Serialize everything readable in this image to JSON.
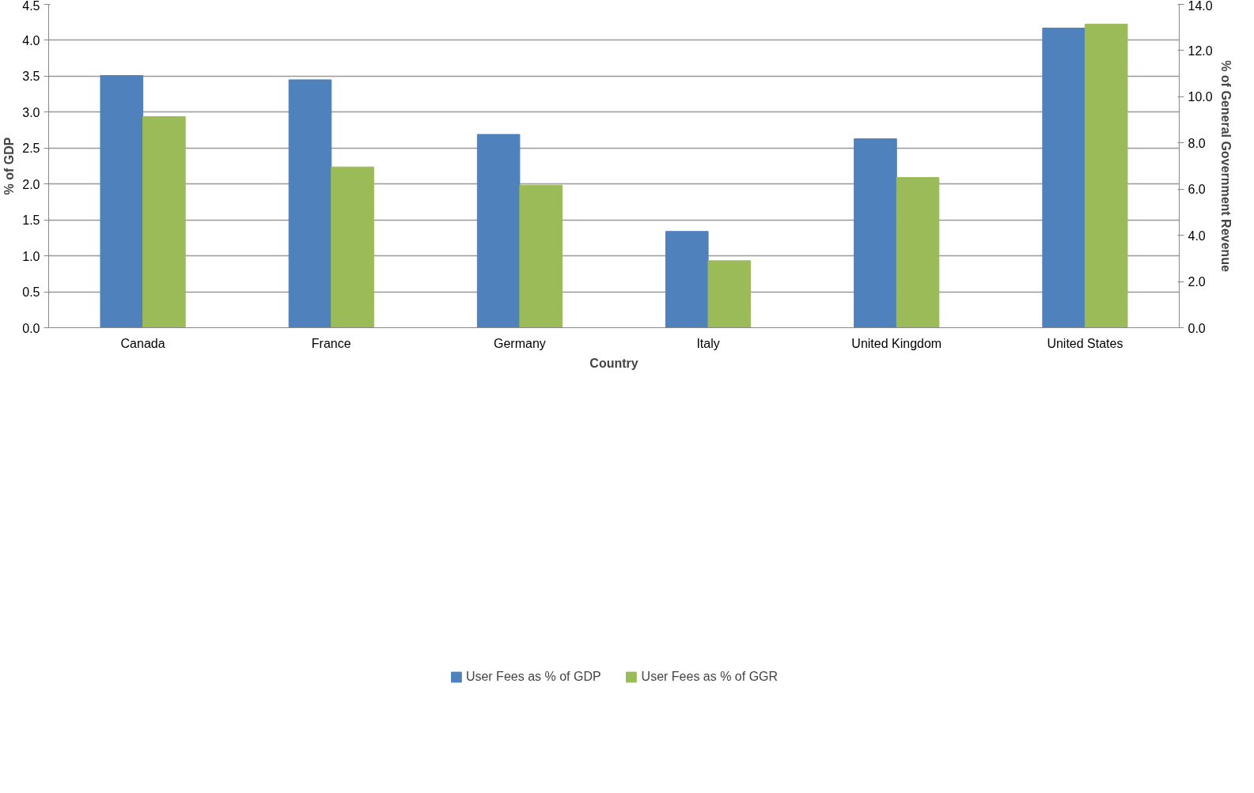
{
  "chart_data": {
    "type": "bar",
    "xlabel": "Country",
    "ylabel": "% of GDP",
    "y2label": "% of General Government Revenue",
    "categories": [
      "Canada",
      "France",
      "Germany",
      "Italy",
      "United Kingdom",
      "United States"
    ],
    "series": [
      {
        "name": "User Fees as % of GDP",
        "color": "#4f81bd",
        "values": [
          3.51,
          3.45,
          2.69,
          1.34,
          2.63,
          4.17
        ]
      },
      {
        "name": "User Fees as % of GGR",
        "color": "#9bbb59",
        "axis": "y2",
        "values": [
          9.14,
          6.96,
          6.17,
          2.9,
          6.5,
          13.14
        ]
      }
    ],
    "ylim": [
      0,
      4.5
    ],
    "yticks": [
      {
        "value": 0,
        "label": "0.0"
      },
      {
        "value": 0.5,
        "label": "0.5"
      },
      {
        "value": 1,
        "label": "1.0"
      },
      {
        "value": 1.5,
        "label": "1.5"
      },
      {
        "value": 2,
        "label": "2.0"
      },
      {
        "value": 2.5,
        "label": "2.5"
      },
      {
        "value": 3,
        "label": "3.0"
      },
      {
        "value": 3.5,
        "label": "3.5"
      },
      {
        "value": 4,
        "label": "4.0"
      },
      {
        "value": 4.5,
        "label": "4.5"
      }
    ],
    "y2lim": [
      0,
      14
    ],
    "y2ticks": [
      {
        "value": 0,
        "label": "0.0"
      },
      {
        "value": 2,
        "label": "2.0"
      },
      {
        "value": 4,
        "label": "4.0"
      },
      {
        "value": 6,
        "label": "6.0"
      },
      {
        "value": 8,
        "label": "8.0"
      },
      {
        "value": 10,
        "label": "10.0"
      },
      {
        "value": 12,
        "label": "12.0"
      },
      {
        "value": 14,
        "label": "14.0"
      }
    ],
    "grid": "y",
    "legend": "bottom"
  }
}
